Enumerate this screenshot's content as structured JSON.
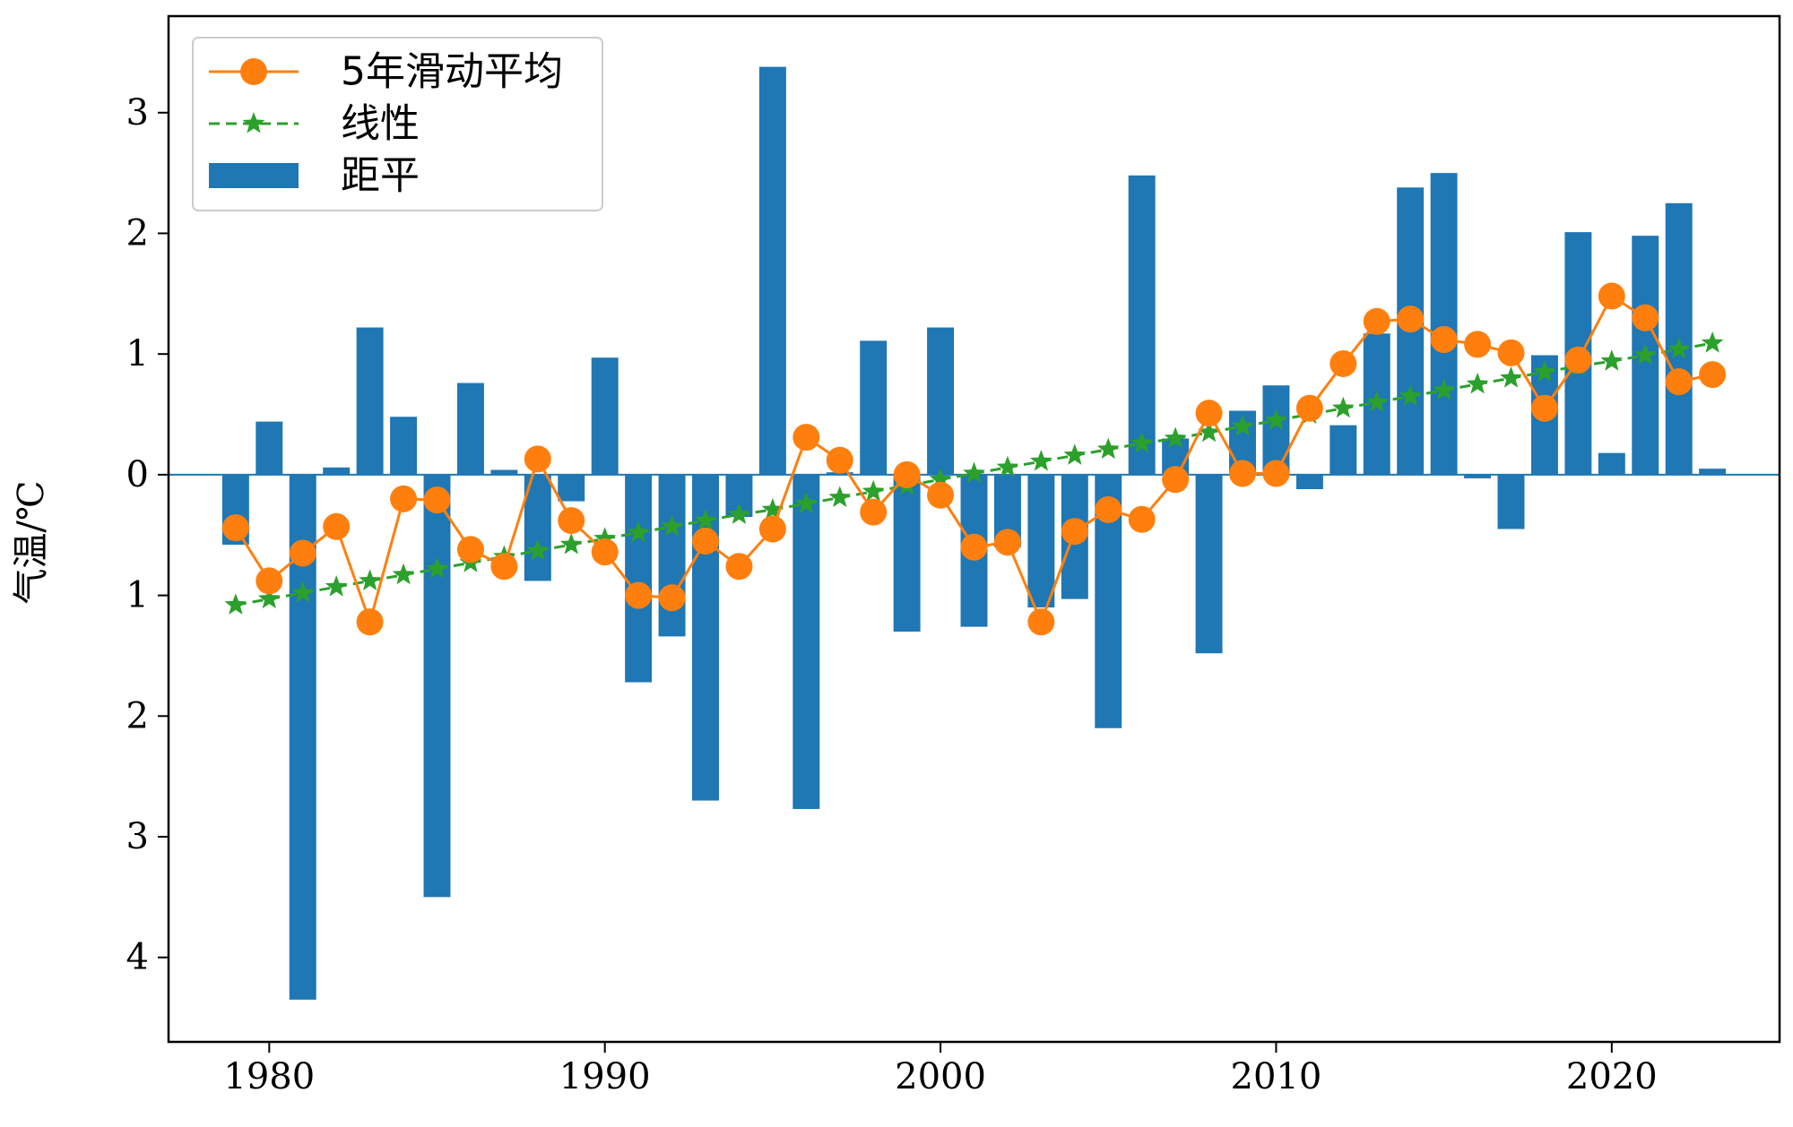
{
  "chart_data": {
    "type": "bar",
    "title": "",
    "xlabel": "",
    "ylabel": "气温/℃",
    "x": [
      1979,
      1980,
      1981,
      1982,
      1983,
      1984,
      1985,
      1986,
      1987,
      1988,
      1989,
      1990,
      1991,
      1992,
      1993,
      1994,
      1995,
      1996,
      1997,
      1998,
      1999,
      2000,
      2001,
      2002,
      2003,
      2004,
      2005,
      2006,
      2007,
      2008,
      2009,
      2010,
      2011,
      2012,
      2013,
      2014,
      2015,
      2016,
      2017,
      2018,
      2019,
      2020,
      2021,
      2022,
      2023
    ],
    "xlim": [
      1977,
      2025
    ],
    "ylim": [
      -4.7,
      3.8
    ],
    "x_ticks": [
      1980,
      1990,
      2000,
      2010,
      2020
    ],
    "x_tick_labels": [
      "1980",
      "1990",
      "2000",
      "2010",
      "2020"
    ],
    "y_ticks": [
      -4,
      -3,
      -2,
      -1,
      0,
      1,
      2,
      3
    ],
    "y_tick_labels": [
      "4",
      "3",
      "2",
      "1",
      "0",
      "1",
      "2",
      "3"
    ],
    "grid": false,
    "legend_position": "top-left",
    "colors": {
      "anomaly": "#1f77b4",
      "moving_avg": "#ff7f0e",
      "linear": "#2ca02c",
      "zero_line": "#1f77b4",
      "axes": "#000000"
    },
    "series": [
      {
        "name": "5年滑动平均",
        "type": "line",
        "marker": "circle",
        "values": [
          -0.44,
          -0.88,
          -0.65,
          -0.43,
          -1.22,
          -0.2,
          -0.21,
          -0.62,
          -0.76,
          0.13,
          -0.38,
          -0.64,
          -1.0,
          -1.02,
          -0.55,
          -0.76,
          -0.45,
          0.31,
          0.12,
          -0.31,
          0.0,
          -0.17,
          -0.6,
          -0.56,
          -1.22,
          -0.47,
          -0.29,
          -0.37,
          -0.04,
          0.51,
          0.01,
          0.01,
          0.55,
          0.92,
          1.27,
          1.29,
          1.12,
          1.08,
          1.01,
          0.55,
          0.95,
          1.48,
          1.3,
          0.77,
          0.83
        ]
      },
      {
        "name": "线性",
        "type": "line",
        "marker": "star",
        "linestyle": "dashed",
        "values": [
          -1.08,
          -1.03,
          -0.98,
          -0.93,
          -0.88,
          -0.83,
          -0.78,
          -0.73,
          -0.68,
          -0.63,
          -0.58,
          -0.53,
          -0.48,
          -0.43,
          -0.38,
          -0.33,
          -0.29,
          -0.24,
          -0.19,
          -0.14,
          -0.09,
          -0.04,
          0.01,
          0.06,
          0.11,
          0.16,
          0.21,
          0.26,
          0.3,
          0.35,
          0.4,
          0.45,
          0.5,
          0.55,
          0.6,
          0.65,
          0.7,
          0.75,
          0.8,
          0.85,
          0.9,
          0.94,
          0.99,
          1.04,
          1.09
        ]
      },
      {
        "name": "距平",
        "type": "bar",
        "values": [
          -0.58,
          0.44,
          -4.35,
          0.06,
          1.22,
          0.48,
          -3.5,
          0.76,
          0.04,
          -0.88,
          -0.22,
          0.97,
          -1.72,
          -1.34,
          -2.7,
          -0.35,
          3.38,
          -2.77,
          0.02,
          1.11,
          -1.3,
          1.22,
          -1.26,
          -0.6,
          -1.1,
          -1.03,
          -2.1,
          2.48,
          0.3,
          -1.48,
          0.53,
          0.74,
          -0.12,
          0.41,
          1.17,
          2.38,
          2.5,
          -0.03,
          -0.45,
          0.99,
          2.01,
          0.18,
          1.98,
          2.25,
          0.05
        ]
      }
    ]
  }
}
